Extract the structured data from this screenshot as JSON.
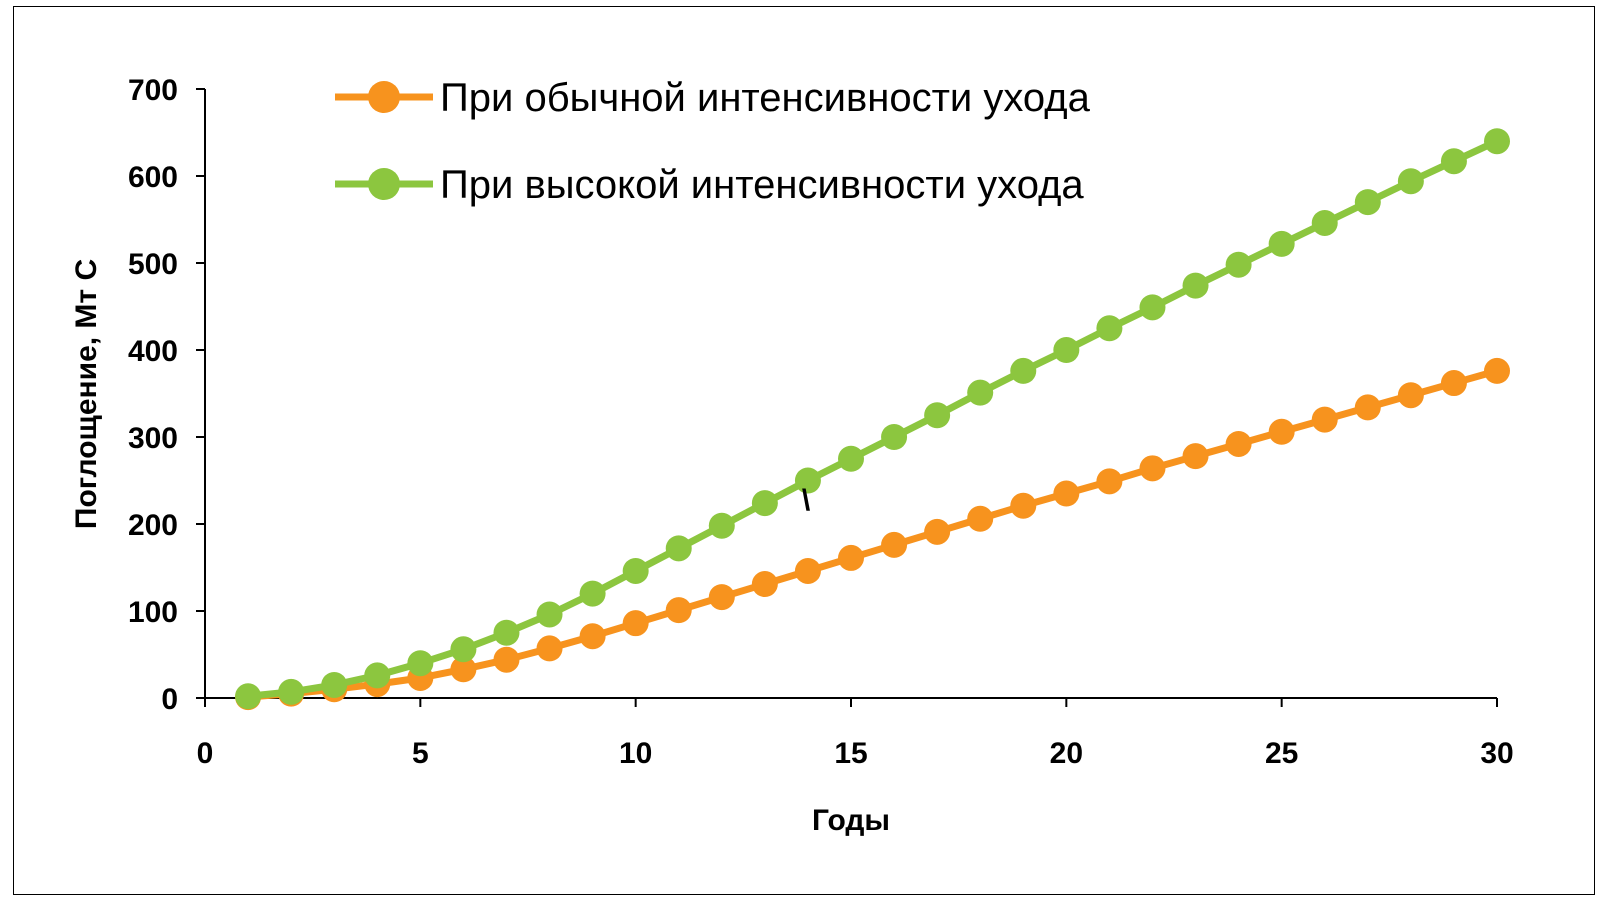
{
  "chart_data": {
    "type": "line",
    "xlabel": "Годы",
    "ylabel": "Поглощение, Мт С",
    "xlim": [
      0,
      30
    ],
    "ylim": [
      0,
      700
    ],
    "xticks": [
      "0",
      "5",
      "10",
      "15",
      "20",
      "25",
      "30"
    ],
    "yticks": [
      "0",
      "100",
      "200",
      "300",
      "400",
      "500",
      "600",
      "700"
    ],
    "grid": false,
    "legend_position": "top-left",
    "annotation": "\\",
    "x": [
      1,
      2,
      3,
      4,
      5,
      6,
      7,
      8,
      9,
      10,
      11,
      12,
      13,
      14,
      15,
      16,
      17,
      18,
      19,
      20,
      21,
      22,
      23,
      24,
      25,
      26,
      27,
      28,
      29,
      30
    ],
    "series": [
      {
        "name": "При обычной интенсивности ухода",
        "color": "#f7931e",
        "values": [
          1,
          5,
          10,
          16,
          23,
          33,
          44,
          57,
          71,
          86,
          101,
          116,
          131,
          146,
          161,
          176,
          191,
          206,
          221,
          235,
          249,
          264,
          278,
          292,
          306,
          320,
          334,
          348,
          362,
          376
        ]
      },
      {
        "name": "При высокой интенсивности ухода",
        "color": "#8cc63f",
        "values": [
          2,
          7,
          15,
          26,
          40,
          56,
          75,
          96,
          120,
          146,
          172,
          198,
          224,
          250,
          275,
          300,
          325,
          351,
          376,
          400,
          425,
          449,
          474,
          498,
          522,
          546,
          570,
          594,
          617,
          640
        ]
      }
    ]
  }
}
